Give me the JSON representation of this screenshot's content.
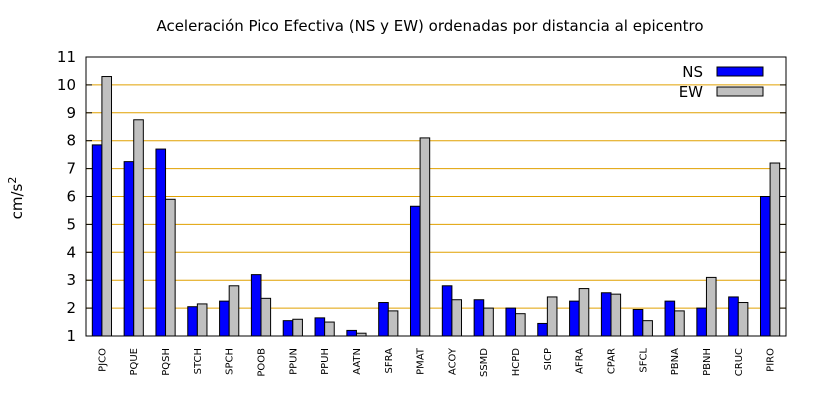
{
  "chart_data": {
    "type": "bar",
    "title": "Aceleración Pico Efectiva (NS y EW) ordenadas por distancia al epicentro",
    "ylabel": "cm/s",
    "ylabel_sup": "2",
    "ylim": [
      1,
      11
    ],
    "yticks": [
      1,
      2,
      3,
      4,
      5,
      6,
      7,
      8,
      9,
      10,
      11
    ],
    "grid": true,
    "legend_position": "top-right",
    "categories": [
      "PJCO",
      "PQUE",
      "PQSH",
      "STCH",
      "SPCH",
      "POOB",
      "PPUN",
      "PPUH",
      "AATN",
      "SFRA",
      "PMAT",
      "ACOY",
      "SSMD",
      "HCPD",
      "SICP",
      "AFRA",
      "CPAR",
      "SFCL",
      "PBNA",
      "PBNH",
      "CRUC",
      "PIRO"
    ],
    "series": [
      {
        "name": "NS",
        "color": "#0000ff",
        "values": [
          7.85,
          7.25,
          7.7,
          2.05,
          2.25,
          3.2,
          1.55,
          1.65,
          1.2,
          2.2,
          5.65,
          2.8,
          2.3,
          2.0,
          1.45,
          2.25,
          2.55,
          1.95,
          2.25,
          2.0,
          2.4,
          6.0
        ]
      },
      {
        "name": "EW",
        "color": "#c0c0c0",
        "values": [
          10.3,
          8.75,
          5.9,
          2.15,
          2.8,
          2.35,
          1.6,
          1.5,
          1.1,
          1.9,
          8.1,
          2.3,
          2.0,
          1.8,
          2.4,
          2.7,
          2.5,
          1.55,
          1.9,
          3.1,
          2.2,
          7.2
        ]
      }
    ],
    "grid_color": "#e0a000"
  }
}
